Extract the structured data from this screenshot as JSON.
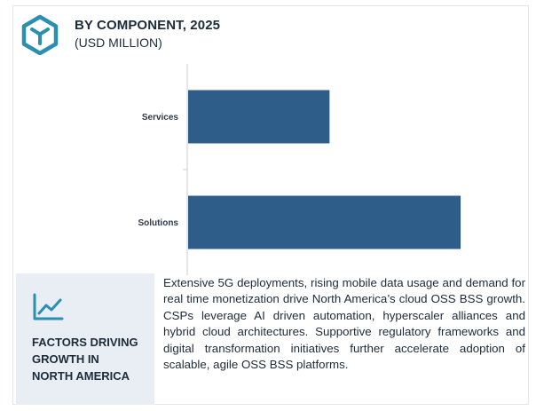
{
  "header": {
    "title": "BY COMPONENT, 2025",
    "subtitle": "(USD MILLION)",
    "logo_icon": "hexagon-box-icon",
    "accent_color": "#2a8fb0"
  },
  "chart_data": {
    "type": "bar",
    "orientation": "horizontal",
    "categories": [
      "Services",
      "Solutions"
    ],
    "values": [
      165,
      317
    ],
    "title": "BY COMPONENT, 2025",
    "subtitle": "(USD MILLION)",
    "xlabel": "",
    "ylabel": "",
    "xlim": [
      0,
      390
    ],
    "bar_color": "#2f5d8a",
    "grid": false,
    "legend": "none"
  },
  "factors": {
    "icon": "trend-line-icon",
    "title_lines": [
      "FACTORS DRIVING",
      "GROWTH IN",
      "NORTH AMERICA"
    ],
    "description": "Extensive 5G deployments, rising mobile data usage and demand for real time monetization drive North America’s cloud OSS BSS growth. CSPs leverage AI driven automation, hyperscaler alliances and hybrid cloud architectures. Supportive regulatory frameworks and digital transformation initiatives further accelerate adoption of scalable, agile OSS BSS platforms."
  }
}
